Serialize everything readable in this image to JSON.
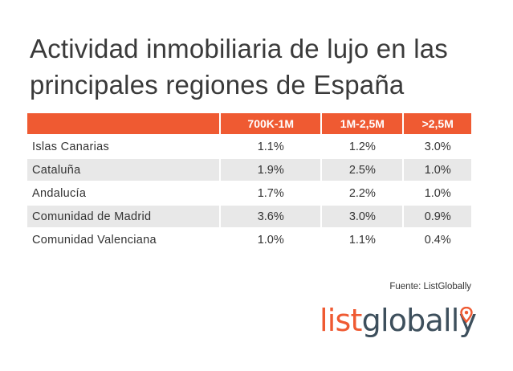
{
  "title": {
    "line1": "Actividad inmobiliaria de lujo en las",
    "line2": "principales regiones de España"
  },
  "chart_data": {
    "type": "table",
    "title": "Actividad inmobiliaria de lujo en las principales regiones de España",
    "columns": [
      "",
      "700K-1M",
      "1M-2,5M",
      ">2,5M"
    ],
    "rows": [
      {
        "region": "Islas Canarias",
        "values": [
          "1.1%",
          "1.2%",
          "3.0%"
        ]
      },
      {
        "region": "Cataluña",
        "values": [
          "1.9%",
          "2.5%",
          "1.0%"
        ]
      },
      {
        "region": "Andalucía",
        "values": [
          "1.7%",
          "2.2%",
          "1.0%"
        ]
      },
      {
        "region": "Comunidad de Madrid",
        "values": [
          "3.6%",
          "3.0%",
          "0.9%"
        ]
      },
      {
        "region": "Comunidad Valenciana",
        "values": [
          "1.0%",
          "1.1%",
          "0.4%"
        ]
      }
    ],
    "header_color": "#ef5a32",
    "shaded_row_color": "#e8e8e8"
  },
  "source": "Fuente: ListGlobally",
  "logo": {
    "part1": "list",
    "part2": "global",
    "part3": "l",
    "part4": "y",
    "color_primary": "#ef5a32",
    "color_secondary": "#3d4f5c"
  }
}
